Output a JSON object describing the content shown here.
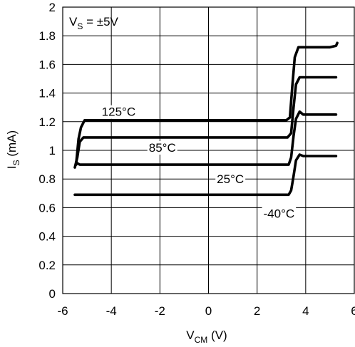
{
  "chart_data": {
    "type": "line",
    "title": "",
    "annotation": {
      "main": "V",
      "sub": "S",
      "rest": " = ±5V"
    },
    "xlabel": {
      "main": "V",
      "sub": "CM",
      "rest": " (V)"
    },
    "ylabel": {
      "main": "I",
      "sub": "S",
      "rest": " (mA)"
    },
    "xlim": [
      -6,
      6
    ],
    "ylim": [
      0,
      2
    ],
    "xticks": [
      -6,
      -4,
      -2,
      0,
      2,
      4,
      6
    ],
    "xtick_labels": [
      "-6",
      "-4",
      "-2",
      "0",
      "2",
      "4",
      "6"
    ],
    "yticks": [
      0,
      0.2,
      0.4,
      0.6,
      0.8,
      1,
      1.2,
      1.4,
      1.6,
      1.8,
      2
    ],
    "ytick_labels": [
      "0",
      "0.2",
      "0.4",
      "0.6",
      "0.8",
      "1",
      "1.2",
      "1.4",
      "1.6",
      "1.8",
      "2"
    ],
    "grid": true,
    "legend": "none",
    "series": [
      {
        "name": "125°C",
        "label_at": [
          -3.7,
          1.27
        ],
        "x": [
          -5.45,
          -5.35,
          -5.25,
          -5.1,
          -4.5,
          0,
          3.2,
          3.35,
          3.45,
          3.55,
          3.7,
          4.2,
          5,
          5.25,
          5.3
        ],
        "y": [
          0.9,
          1.08,
          1.16,
          1.21,
          1.21,
          1.21,
          1.21,
          1.23,
          1.45,
          1.65,
          1.72,
          1.72,
          1.72,
          1.73,
          1.75
        ]
      },
      {
        "name": "85°C",
        "label_at": [
          -1.9,
          1.02
        ],
        "x": [
          -5.5,
          -5.4,
          -5.3,
          -5.15,
          -4.5,
          0,
          3.25,
          3.4,
          3.5,
          3.6,
          3.75,
          4.2,
          5.25
        ],
        "y": [
          0.88,
          0.95,
          1.06,
          1.09,
          1.09,
          1.09,
          1.09,
          1.12,
          1.3,
          1.46,
          1.51,
          1.51,
          1.51
        ]
      },
      {
        "name": "25°C",
        "label_at": [
          0.9,
          0.8
        ],
        "x": [
          -5.45,
          -5.4,
          -5.3,
          -4.5,
          0,
          3.3,
          3.4,
          3.5,
          3.6,
          3.75,
          3.9,
          4.2,
          5.25
        ],
        "y": [
          0.9,
          0.91,
          0.9,
          0.9,
          0.9,
          0.9,
          0.95,
          1.1,
          1.22,
          1.27,
          1.25,
          1.25,
          1.25
        ]
      },
      {
        "name": "-40°C",
        "label_at": [
          2.9,
          0.56
        ],
        "x": [
          -5.5,
          -4.5,
          0,
          3.3,
          3.4,
          3.5,
          3.6,
          3.75,
          3.9,
          4.2,
          5.25
        ],
        "y": [
          0.69,
          0.69,
          0.69,
          0.69,
          0.72,
          0.82,
          0.93,
          0.97,
          0.96,
          0.96,
          0.96
        ]
      }
    ]
  }
}
